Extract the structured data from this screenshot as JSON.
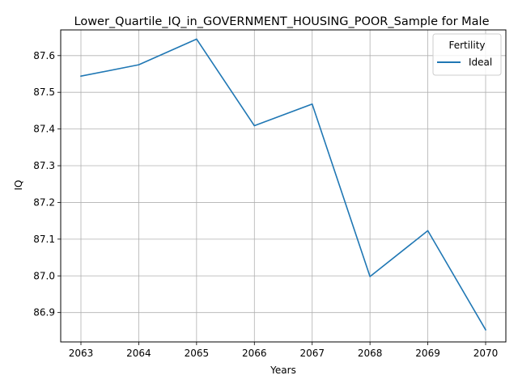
{
  "chart_data": {
    "type": "line",
    "title": "Lower_Quartile_IQ_in_GOVERNMENT_HOUSING_POOR_Sample for Male",
    "xlabel": "Years",
    "ylabel": "IQ",
    "x": [
      2063,
      2064,
      2065,
      2066,
      2067,
      2068,
      2069,
      2070
    ],
    "xticks": [
      "2063",
      "2064",
      "2065",
      "2066",
      "2067",
      "2068",
      "2069",
      "2070"
    ],
    "yticks": [
      "86.9",
      "87.0",
      "87.1",
      "87.2",
      "87.3",
      "87.4",
      "87.5",
      "87.6"
    ],
    "ylim": [
      86.82,
      87.67
    ],
    "grid": true,
    "legend": {
      "title": "Fertility",
      "placement": "upper-right"
    },
    "series": [
      {
        "name": "Ideal",
        "color": "#1f77b4",
        "values": [
          87.544,
          87.575,
          87.645,
          87.409,
          87.468,
          86.998,
          87.123,
          86.853
        ]
      }
    ]
  }
}
